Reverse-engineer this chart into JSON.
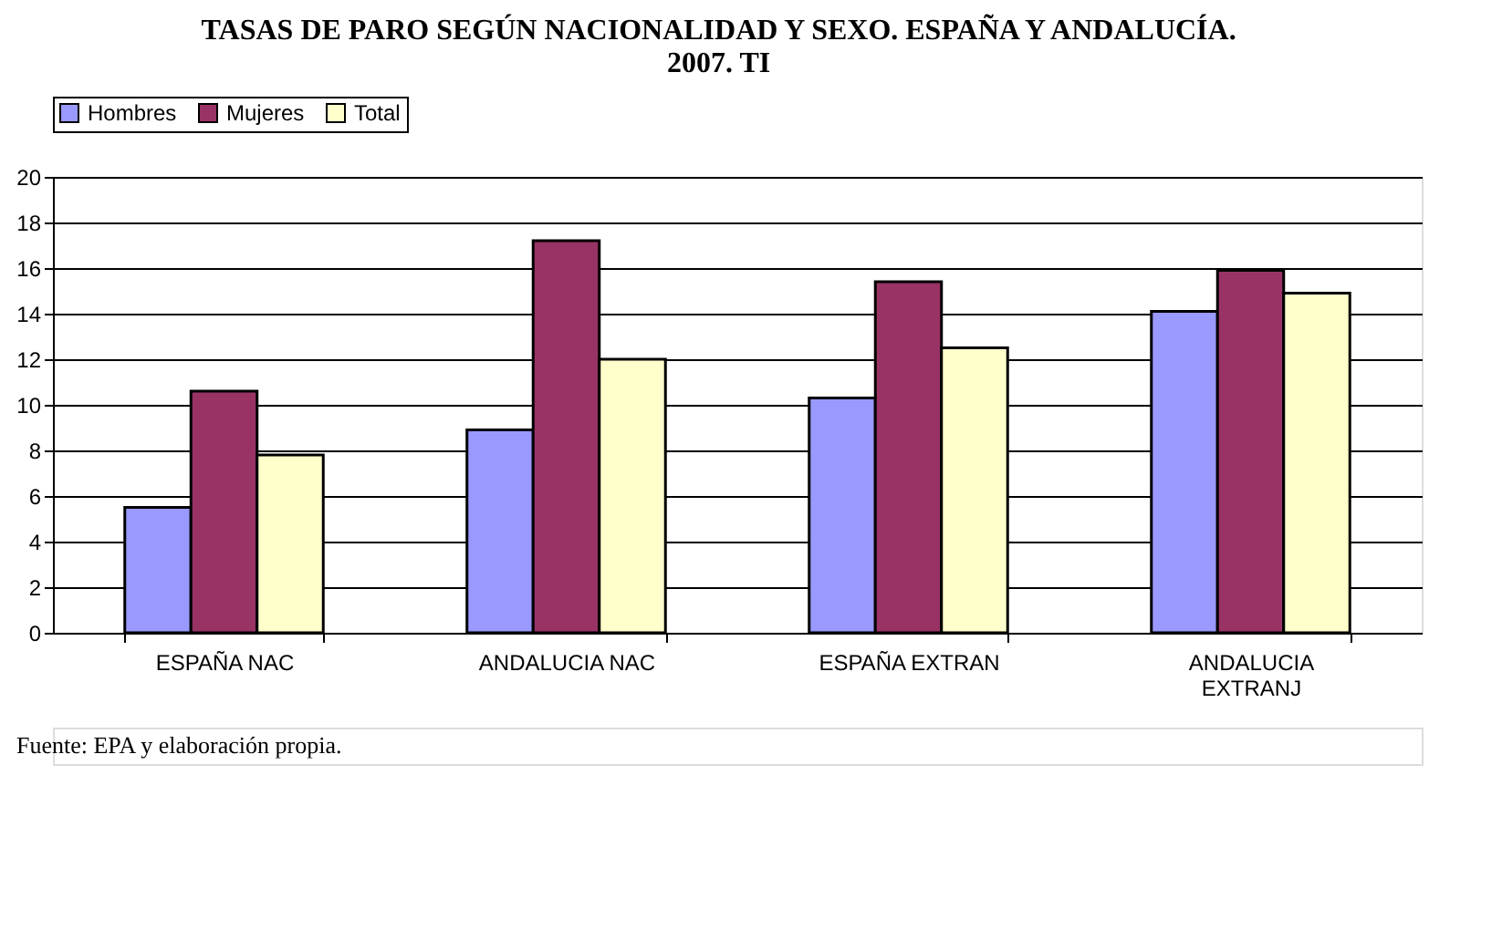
{
  "chart_data": {
    "type": "bar",
    "title": [
      "TASAS DE PARO SEGÚN NACIONALIDAD Y SEXO. ESPAÑA Y ANDALUCÍA.",
      "2007. TI"
    ],
    "categories": [
      "ESPAÑA NAC",
      "ANDALUCIA NAC",
      "ESPAÑA EXTRAN",
      "ANDALUCIA EXTRANJ"
    ],
    "series": [
      {
        "name": "Hombres",
        "color": "#9999ff",
        "values": [
          5.5,
          8.9,
          10.3,
          14.1
        ]
      },
      {
        "name": "Mujeres",
        "color": "#993366",
        "values": [
          10.6,
          17.2,
          15.4,
          15.9
        ]
      },
      {
        "name": "Total",
        "color": "#ffffcc",
        "values": [
          7.8,
          12.0,
          12.5,
          14.9
        ]
      }
    ],
    "ylim": [
      0,
      20
    ],
    "yticks": [
      0,
      2,
      4,
      6,
      8,
      10,
      12,
      14,
      16,
      18,
      20
    ],
    "grid": "y",
    "legend": "top",
    "annotations": [
      "Fuente: EPA y elaboración propia."
    ]
  }
}
